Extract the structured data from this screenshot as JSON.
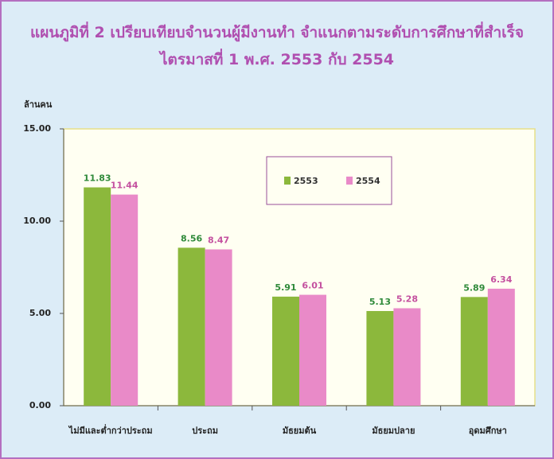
{
  "chart_data": {
    "type": "bar",
    "title": "แผนภูมิที่ 2 เปรียบเทียบจำนวนผู้มีงานทำ จำแนกตามระดับการศึกษาที่สำเร็จ ไตรมาสที่ 1 พ.ศ. 2553 กับ 2554",
    "y_label": "ล้านคน",
    "categories": [
      "ไม่มีและต่ำกว่าประถม",
      "ประถม",
      "มัธยมต้น",
      "มัธยมปลาย",
      "อุดมศึกษา"
    ],
    "series": [
      {
        "name": "2553",
        "color": "#8cb83c",
        "values": [
          11.83,
          8.56,
          5.91,
          5.13,
          5.89
        ]
      },
      {
        "name": "2554",
        "color": "#e98ac8",
        "values": [
          11.44,
          8.47,
          6.01,
          5.28,
          6.34
        ]
      }
    ],
    "ylim": [
      0,
      15
    ],
    "yticks": [
      {
        "value": 0,
        "label": "0.00"
      },
      {
        "value": 5,
        "label": "5.00"
      },
      {
        "value": 10,
        "label": "10.00"
      },
      {
        "value": 15,
        "label": "15.00"
      }
    ],
    "grid": false
  }
}
